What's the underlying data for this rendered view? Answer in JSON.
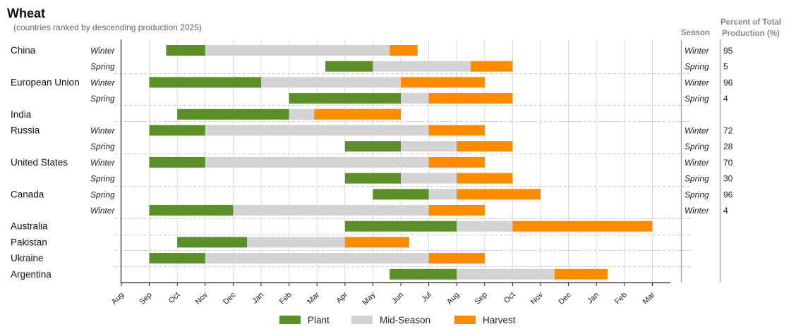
{
  "chart_data": {
    "type": "gantt",
    "title": "Wheat",
    "subtitle": "(countries ranked by descending production 2025)",
    "season_header": "Season",
    "percent_header": [
      "Percent of Total",
      "Production (%)"
    ],
    "months": [
      "Aug",
      "Sep",
      "Oct",
      "Nov",
      "Dec",
      "Jan",
      "Feb",
      "Mar",
      "Apr",
      "May",
      "Jun",
      "Jul",
      "Aug",
      "Sep",
      "Oct",
      "Nov",
      "Dec",
      "Jan",
      "Feb",
      "Mar"
    ],
    "legend": [
      "Plant",
      "Mid-Season",
      "Harvest"
    ],
    "colors": {
      "Plant": "#5b8f29",
      "Mid-Season": "#d3d3d5",
      "Harvest": "#fb8c00"
    },
    "rows": [
      {
        "country": "China",
        "season": "Winter",
        "pct": "95",
        "plant": [
          1.6,
          3.0
        ],
        "mid": [
          3.0,
          9.6
        ],
        "harvest": [
          9.6,
          10.6
        ]
      },
      {
        "country": "",
        "season": "Spring",
        "pct": "5",
        "plant": [
          7.3,
          9.0
        ],
        "mid": [
          9.0,
          12.5
        ],
        "harvest": [
          12.5,
          14.0
        ]
      },
      {
        "country": "European Union",
        "season": "Winter",
        "pct": "96",
        "plant": [
          1.0,
          5.0
        ],
        "mid": [
          5.0,
          10.0
        ],
        "harvest": [
          10.0,
          13.0
        ]
      },
      {
        "country": "",
        "season": "Spring",
        "pct": "4",
        "plant": [
          6.0,
          10.0
        ],
        "mid": [
          10.0,
          11.0
        ],
        "harvest": [
          11.0,
          14.0
        ]
      },
      {
        "country": "India",
        "season": "",
        "pct": "",
        "plant": [
          2.0,
          6.0
        ],
        "mid": [
          6.0,
          6.9
        ],
        "harvest": [
          6.9,
          10.0
        ]
      },
      {
        "country": "Russia",
        "season": "Winter",
        "pct": "72",
        "plant": [
          1.0,
          3.0
        ],
        "mid": [
          3.0,
          11.0
        ],
        "harvest": [
          11.0,
          13.0
        ]
      },
      {
        "country": "",
        "season": "Spring",
        "pct": "28",
        "plant": [
          8.0,
          10.0
        ],
        "mid": [
          10.0,
          12.0
        ],
        "harvest": [
          12.0,
          14.0
        ]
      },
      {
        "country": "United States",
        "season": "Winter",
        "pct": "70",
        "plant": [
          1.0,
          3.0
        ],
        "mid": [
          3.0,
          11.0
        ],
        "harvest": [
          11.0,
          13.0
        ]
      },
      {
        "country": "",
        "season": "Spring",
        "pct": "30",
        "plant": [
          8.0,
          10.0
        ],
        "mid": [
          10.0,
          12.0
        ],
        "harvest": [
          12.0,
          14.0
        ]
      },
      {
        "country": "Canada",
        "season": "Spring",
        "pct": "96",
        "plant": [
          9.0,
          11.0
        ],
        "mid": [
          11.0,
          12.0
        ],
        "harvest": [
          12.0,
          15.0
        ]
      },
      {
        "country": "",
        "season": "Winter",
        "pct": "4",
        "plant": [
          1.0,
          4.0
        ],
        "mid": [
          4.0,
          11.0
        ],
        "harvest": [
          11.0,
          13.0
        ]
      },
      {
        "country": "Australia",
        "season": "",
        "pct": "",
        "plant": [
          8.0,
          12.0
        ],
        "mid": [
          12.0,
          14.0
        ],
        "harvest": [
          14.0,
          19.0
        ]
      },
      {
        "country": "Pakistan",
        "season": "",
        "pct": "",
        "plant": [
          2.0,
          4.5
        ],
        "mid": [
          4.5,
          8.0
        ],
        "harvest": [
          8.0,
          10.3
        ]
      },
      {
        "country": "Ukraine",
        "season": "",
        "pct": "",
        "plant": [
          1.0,
          3.0
        ],
        "mid": [
          3.0,
          11.0
        ],
        "harvest": [
          11.0,
          13.0
        ]
      },
      {
        "country": "Argentina",
        "season": "",
        "pct": "",
        "plant": [
          9.6,
          12.0
        ],
        "mid": [
          12.0,
          15.5
        ],
        "harvest": [
          15.5,
          17.4
        ]
      }
    ]
  }
}
